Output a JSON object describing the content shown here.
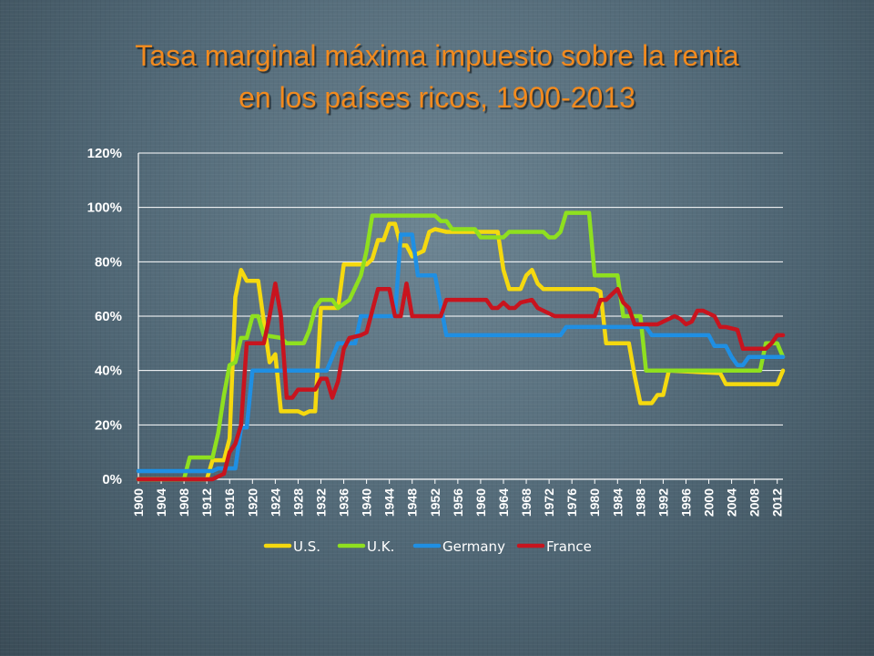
{
  "chart_data": {
    "type": "line",
    "title": "Tasa marginal máxima impuesto sobre la renta en los países ricos, 1900-2013",
    "title_lines": [
      "Tasa marginal máxima impuesto sobre la renta",
      "en los países ricos, 1900-2013"
    ],
    "xlabel": "",
    "ylabel": "",
    "xlim": [
      1900,
      2013
    ],
    "ylim": [
      0,
      120
    ],
    "y_ticks": [
      0,
      20,
      40,
      60,
      80,
      100,
      120
    ],
    "y_tick_labels": [
      "0%",
      "20%",
      "40%",
      "60%",
      "80%",
      "100%",
      "120%"
    ],
    "x_ticks": [
      1900,
      1904,
      1908,
      1912,
      1916,
      1920,
      1924,
      1928,
      1932,
      1936,
      1940,
      1944,
      1948,
      1952,
      1956,
      1960,
      1964,
      1968,
      1972,
      1976,
      1980,
      1984,
      1988,
      1992,
      1996,
      2000,
      2004,
      2008,
      2012
    ],
    "grid": true,
    "legend": "bottom",
    "series": [
      {
        "name": "U.S.",
        "color": "#f5d90f",
        "points": [
          [
            1900,
            0
          ],
          [
            1912,
            0
          ],
          [
            1913,
            7
          ],
          [
            1915,
            7
          ],
          [
            1916,
            15
          ],
          [
            1917,
            67
          ],
          [
            1918,
            77
          ],
          [
            1919,
            73
          ],
          [
            1921,
            73
          ],
          [
            1922,
            58
          ],
          [
            1923,
            43
          ],
          [
            1924,
            46
          ],
          [
            1925,
            25
          ],
          [
            1928,
            25
          ],
          [
            1929,
            24
          ],
          [
            1930,
            25
          ],
          [
            1931,
            25
          ],
          [
            1932,
            63
          ],
          [
            1935,
            63
          ],
          [
            1936,
            79
          ],
          [
            1940,
            79
          ],
          [
            1941,
            81
          ],
          [
            1942,
            88
          ],
          [
            1943,
            88
          ],
          [
            1944,
            94
          ],
          [
            1945,
            94
          ],
          [
            1946,
            86
          ],
          [
            1947,
            86
          ],
          [
            1948,
            82
          ],
          [
            1950,
            84
          ],
          [
            1951,
            91
          ],
          [
            1952,
            92
          ],
          [
            1954,
            91
          ],
          [
            1963,
            91
          ],
          [
            1964,
            77
          ],
          [
            1965,
            70
          ],
          [
            1967,
            70
          ],
          [
            1968,
            75
          ],
          [
            1969,
            77
          ],
          [
            1970,
            72
          ],
          [
            1971,
            70
          ],
          [
            1980,
            70
          ],
          [
            1981,
            69
          ],
          [
            1982,
            50
          ],
          [
            1986,
            50
          ],
          [
            1987,
            38
          ],
          [
            1988,
            28
          ],
          [
            1990,
            28
          ],
          [
            1991,
            31
          ],
          [
            1992,
            31
          ],
          [
            1993,
            40
          ],
          [
            2002,
            39
          ],
          [
            2003,
            35
          ],
          [
            2012,
            35
          ],
          [
            2013,
            40
          ]
        ]
      },
      {
        "name": "U.K.",
        "color": "#8fe01f",
        "points": [
          [
            1900,
            0
          ],
          [
            1908,
            0
          ],
          [
            1909,
            8
          ],
          [
            1913,
            8
          ],
          [
            1914,
            17
          ],
          [
            1915,
            31
          ],
          [
            1916,
            42
          ],
          [
            1917,
            43
          ],
          [
            1918,
            52
          ],
          [
            1919,
            52
          ],
          [
            1920,
            60
          ],
          [
            1921,
            60
          ],
          [
            1922,
            53
          ],
          [
            1925,
            52
          ],
          [
            1926,
            50
          ],
          [
            1929,
            50
          ],
          [
            1930,
            55
          ],
          [
            1931,
            63
          ],
          [
            1932,
            66
          ],
          [
            1934,
            66
          ],
          [
            1935,
            63
          ],
          [
            1937,
            66
          ],
          [
            1939,
            75
          ],
          [
            1940,
            84
          ],
          [
            1941,
            97
          ],
          [
            1952,
            97
          ],
          [
            1953,
            95
          ],
          [
            1954,
            95
          ],
          [
            1955,
            92
          ],
          [
            1959,
            92
          ],
          [
            1960,
            89
          ],
          [
            1964,
            89
          ],
          [
            1965,
            91
          ],
          [
            1971,
            91
          ],
          [
            1972,
            89
          ],
          [
            1973,
            89
          ],
          [
            1974,
            91
          ],
          [
            1975,
            98
          ],
          [
            1979,
            98
          ],
          [
            1980,
            75
          ],
          [
            1984,
            75
          ],
          [
            1985,
            60
          ],
          [
            1988,
            60
          ],
          [
            1989,
            40
          ],
          [
            2009,
            40
          ],
          [
            2010,
            50
          ],
          [
            2012,
            50
          ],
          [
            2013,
            45
          ]
        ]
      },
      {
        "name": "Germany",
        "color": "#1f8fe3",
        "points": [
          [
            1900,
            3
          ],
          [
            1913,
            3
          ],
          [
            1914,
            4
          ],
          [
            1917,
            4
          ],
          [
            1918,
            19
          ],
          [
            1919,
            19
          ],
          [
            1920,
            40
          ],
          [
            1925,
            40
          ],
          [
            1926,
            40
          ],
          [
            1932,
            40
          ],
          [
            1933,
            40
          ],
          [
            1935,
            50
          ],
          [
            1938,
            50
          ],
          [
            1939,
            60
          ],
          [
            1945,
            60
          ],
          [
            1946,
            90
          ],
          [
            1948,
            90
          ],
          [
            1949,
            75
          ],
          [
            1952,
            75
          ],
          [
            1953,
            64
          ],
          [
            1954,
            53
          ],
          [
            1974,
            53
          ],
          [
            1975,
            56
          ],
          [
            1989,
            56
          ],
          [
            1990,
            53
          ],
          [
            2000,
            53
          ],
          [
            2001,
            49
          ],
          [
            2003,
            49
          ],
          [
            2004,
            45
          ],
          [
            2005,
            42
          ],
          [
            2006,
            42
          ],
          [
            2007,
            45
          ],
          [
            2013,
            45
          ]
        ]
      },
      {
        "name": "France",
        "color": "#c8141e",
        "points": [
          [
            1900,
            0
          ],
          [
            1913,
            0
          ],
          [
            1914,
            1
          ],
          [
            1915,
            2
          ],
          [
            1916,
            10
          ],
          [
            1917,
            13
          ],
          [
            1918,
            20
          ],
          [
            1919,
            50
          ],
          [
            1922,
            50
          ],
          [
            1923,
            60
          ],
          [
            1924,
            72
          ],
          [
            1925,
            60
          ],
          [
            1926,
            30
          ],
          [
            1927,
            30
          ],
          [
            1928,
            33
          ],
          [
            1931,
            33
          ],
          [
            1932,
            37
          ],
          [
            1933,
            37
          ],
          [
            1934,
            30
          ],
          [
            1935,
            36
          ],
          [
            1936,
            48
          ],
          [
            1937,
            52
          ],
          [
            1939,
            53
          ],
          [
            1940,
            54
          ],
          [
            1941,
            62
          ],
          [
            1942,
            70
          ],
          [
            1944,
            70
          ],
          [
            1945,
            60
          ],
          [
            1946,
            60
          ],
          [
            1947,
            72
          ],
          [
            1948,
            60
          ],
          [
            1953,
            60
          ],
          [
            1954,
            66
          ],
          [
            1961,
            66
          ],
          [
            1962,
            63
          ],
          [
            1963,
            63
          ],
          [
            1964,
            65
          ],
          [
            1965,
            63
          ],
          [
            1966,
            63
          ],
          [
            1967,
            65
          ],
          [
            1969,
            66
          ],
          [
            1970,
            63
          ],
          [
            1971,
            62
          ],
          [
            1972,
            61
          ],
          [
            1973,
            60
          ],
          [
            1980,
            60
          ],
          [
            1981,
            66
          ],
          [
            1982,
            66
          ],
          [
            1983,
            68
          ],
          [
            1984,
            70
          ],
          [
            1985,
            65
          ],
          [
            1986,
            63
          ],
          [
            1987,
            57
          ],
          [
            1991,
            57
          ],
          [
            1992,
            58
          ],
          [
            1993,
            59
          ],
          [
            1994,
            60
          ],
          [
            1995,
            59
          ],
          [
            1996,
            57
          ],
          [
            1997,
            58
          ],
          [
            1998,
            62
          ],
          [
            1999,
            62
          ],
          [
            2000,
            61
          ],
          [
            2001,
            60
          ],
          [
            2002,
            56
          ],
          [
            2003,
            56
          ],
          [
            2005,
            55
          ],
          [
            2006,
            48
          ],
          [
            2010,
            48
          ],
          [
            2011,
            50
          ],
          [
            2012,
            53
          ],
          [
            2013,
            53
          ]
        ]
      }
    ]
  }
}
